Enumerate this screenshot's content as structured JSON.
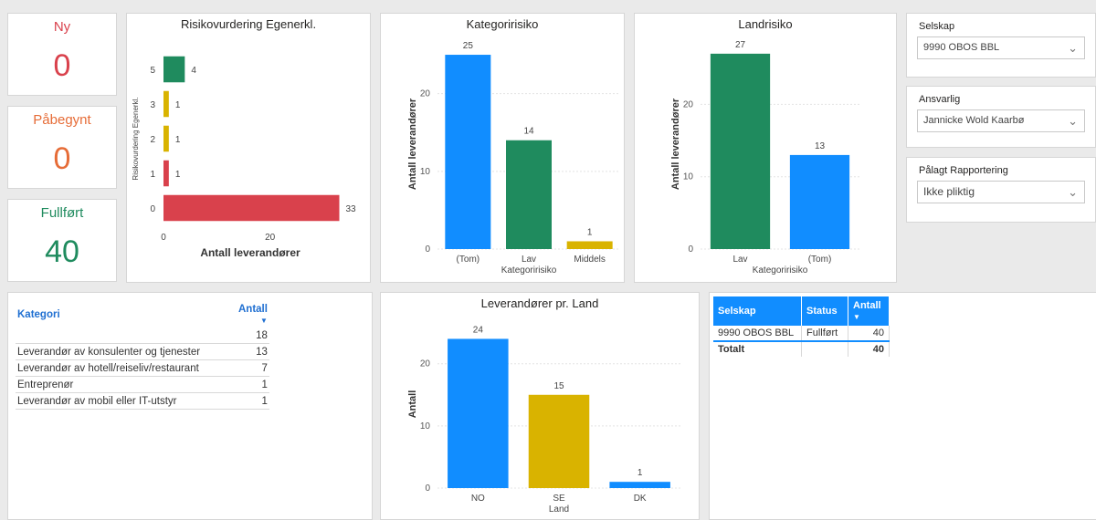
{
  "kpis": [
    {
      "label": "Ny",
      "value": "0",
      "color": "#d9414c"
    },
    {
      "label": "Påbegynt",
      "value": "0",
      "color": "#e66c37"
    },
    {
      "label": "Fullført",
      "value": "40",
      "color": "#1f8b5e"
    }
  ],
  "slicers": [
    {
      "title": "Selskap",
      "value": "9990 OBOS BBL"
    },
    {
      "title": "Ansvarlig",
      "value": "Jannicke Wold Kaarbø"
    },
    {
      "title": "Pålagt Rapportering",
      "value": "Ikke pliktig"
    }
  ],
  "category_table": {
    "headers": [
      "Kategori",
      "Antall"
    ],
    "rows": [
      {
        "name": "",
        "value": "18"
      },
      {
        "name": "Leverandør av konsulenter og tjenester",
        "value": "13"
      },
      {
        "name": "Leverandør av hotell/reiseliv/restaurant",
        "value": "7"
      },
      {
        "name": "Entreprenør",
        "value": "1"
      },
      {
        "name": "Leverandør av mobil eller IT-utstyr",
        "value": "1"
      }
    ]
  },
  "company_table": {
    "headers": [
      "Selskap",
      "Status",
      "Antall"
    ],
    "rows": [
      {
        "selskap": "9990 OBOS BBL",
        "status": "Fullført",
        "antall": "40"
      }
    ],
    "total": {
      "label": "Totalt",
      "antall": "40"
    }
  },
  "chart_data": [
    {
      "type": "bar",
      "orientation": "horizontal",
      "title": "Risikovurdering Egenerkl.",
      "categories": [
        "5",
        "3",
        "2",
        "1",
        "0"
      ],
      "values": [
        4,
        1,
        1,
        1,
        33
      ],
      "colors": [
        "#1f8b5e",
        "#d9b300",
        "#d9b300",
        "#d9414c",
        "#d9414c"
      ],
      "xlabel": "Antall leverandører",
      "ylabel": "Risikovurdering Egenerkl.",
      "xticks": [
        0,
        20
      ],
      "xlim": [
        0,
        36
      ]
    },
    {
      "type": "bar",
      "title": "Kategoririsiko",
      "categories": [
        "(Tom)",
        "Lav",
        "Middels"
      ],
      "values": [
        25,
        14,
        1
      ],
      "colors": [
        "#118dff",
        "#1f8b5e",
        "#d9b300"
      ],
      "xlabel": "Kategoririsiko",
      "ylabel": "Antall leverandører",
      "yticks": [
        0,
        10,
        20
      ],
      "ylim": [
        0,
        27
      ]
    },
    {
      "type": "bar",
      "title": "Landrisiko",
      "categories": [
        "Lav",
        "(Tom)"
      ],
      "values": [
        27,
        13
      ],
      "colors": [
        "#1f8b5e",
        "#118dff"
      ],
      "xlabel": "Kategoririsiko",
      "ylabel": "Antall leverandører",
      "yticks": [
        0,
        10,
        20
      ],
      "ylim": [
        0,
        29
      ]
    },
    {
      "type": "bar",
      "title": "Leverandører pr. Land",
      "categories": [
        "NO",
        "SE",
        "DK"
      ],
      "values": [
        24,
        15,
        1
      ],
      "colors": [
        "#118dff",
        "#d9b300",
        "#118dff"
      ],
      "xlabel": "Land",
      "ylabel": "Antall",
      "yticks": [
        0,
        10,
        20
      ],
      "ylim": [
        0,
        27
      ]
    }
  ]
}
